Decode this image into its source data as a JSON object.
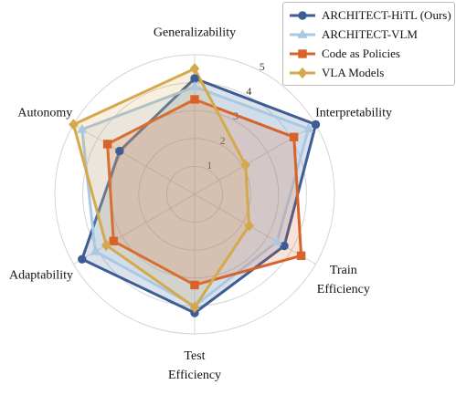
{
  "chart_data": {
    "type": "radar",
    "categories": [
      "Generalizability",
      "Interpretability",
      "Train Efficiency",
      "Test Efficiency",
      "Adaptability",
      "Autonomy"
    ],
    "rlim": [
      0,
      5
    ],
    "rticks": [
      1,
      2,
      3,
      4,
      5
    ],
    "grid": true,
    "legend": "upper right",
    "series": [
      {
        "name": "ARCHITECT-HiTL (Ours)",
        "color": "#3d5d94",
        "marker": "circle",
        "values": [
          4.15,
          5.0,
          3.7,
          4.25,
          4.65,
          3.1
        ]
      },
      {
        "name": "ARCHITECT-VLM",
        "color": "#a9c9e2",
        "marker": "triangle",
        "values": [
          3.85,
          4.7,
          3.4,
          4.0,
          4.1,
          4.65
        ]
      },
      {
        "name": "Code as Policies",
        "color": "#d9622b",
        "marker": "square",
        "values": [
          3.4,
          4.1,
          4.4,
          3.25,
          3.35,
          3.6
        ]
      },
      {
        "name": "VLA Models",
        "color": "#d6a84c",
        "marker": "diamond",
        "values": [
          4.5,
          2.1,
          2.25,
          4.05,
          3.65,
          5.0
        ]
      }
    ]
  }
}
